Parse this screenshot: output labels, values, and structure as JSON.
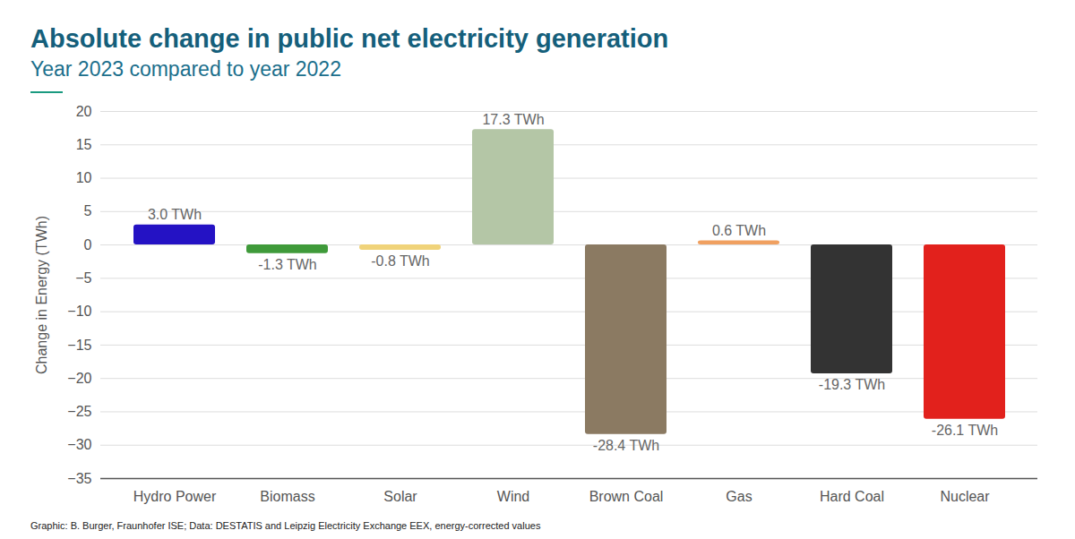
{
  "chart_data": {
    "type": "bar",
    "title": "Absolute change in public net electricity generation",
    "subtitle": "Year 2023 compared to year 2022",
    "caption": "Graphic: B. Burger, Fraunhofer ISE; Data: DESTATIS and Leipzig Electricity Exchange EEX, energy-corrected values",
    "y_label": "Change in Energy (TWh)",
    "categories": [
      "Hydro Power",
      "Biomass",
      "Solar",
      "Wind",
      "Brown Coal",
      "Gas",
      "Hard Coal",
      "Nuclear"
    ],
    "values": [
      3.0,
      -1.3,
      -0.8,
      17.3,
      -28.4,
      0.6,
      -19.3,
      -26.1
    ],
    "value_labels": [
      "3.0 TWh",
      "-1.3 TWh",
      "-0.8 TWh",
      "17.3 TWh",
      "-28.4 TWh",
      "0.6 TWh",
      "-19.3 TWh",
      "-26.1 TWh"
    ],
    "colors": [
      "#2412c4",
      "#3f9a3a",
      "#f0d37a",
      "#b4c6a6",
      "#8b7a62",
      "#f0a060",
      "#333333",
      "#e2211c"
    ],
    "ylim": [
      -35,
      20
    ],
    "yticks": [
      -35,
      -30,
      -25,
      -20,
      -15,
      -10,
      -5,
      0,
      5,
      10,
      15,
      20
    ],
    "grid": true,
    "data_labels": true
  }
}
